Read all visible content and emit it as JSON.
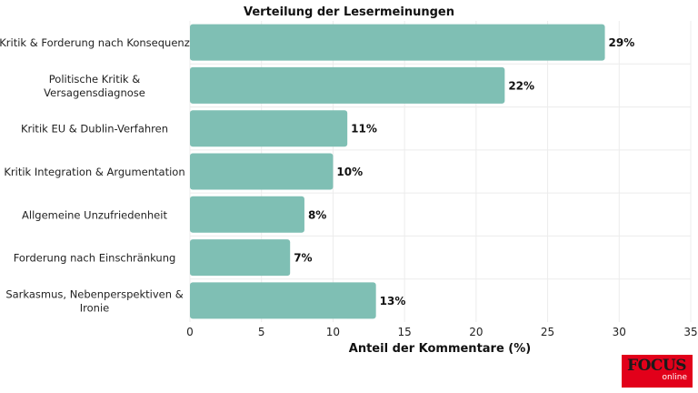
{
  "chart_data": {
    "type": "bar",
    "orientation": "horizontal",
    "title": "Verteilung der Lesermeinungen",
    "xlabel": "Anteil der Kommentare (%)",
    "ylabel": "",
    "categories": [
      [
        "Kritik & Forderung nach Konsequenz"
      ],
      [
        "Politische Kritik &",
        "Versagensdiagnose"
      ],
      [
        "Kritik EU & Dublin-Verfahren"
      ],
      [
        "Kritik Integration & Argumentation"
      ],
      [
        "Allgemeine Unzufriedenheit"
      ],
      [
        "Forderung nach Einschränkung"
      ],
      [
        "Sarkasmus, Nebenperspektiven &",
        "Ironie"
      ]
    ],
    "values": [
      29,
      22,
      11,
      10,
      8,
      7,
      13
    ],
    "data_labels": [
      "29%",
      "22%",
      "11%",
      "10%",
      "8%",
      "7%",
      "13%"
    ],
    "xlim": [
      0,
      35
    ],
    "xticks": [
      0,
      5,
      10,
      15,
      20,
      25,
      30,
      35
    ],
    "grid": true,
    "bar_color": "#7fbfb4"
  },
  "logo": {
    "brand": "FOCUS",
    "sub": "online"
  }
}
